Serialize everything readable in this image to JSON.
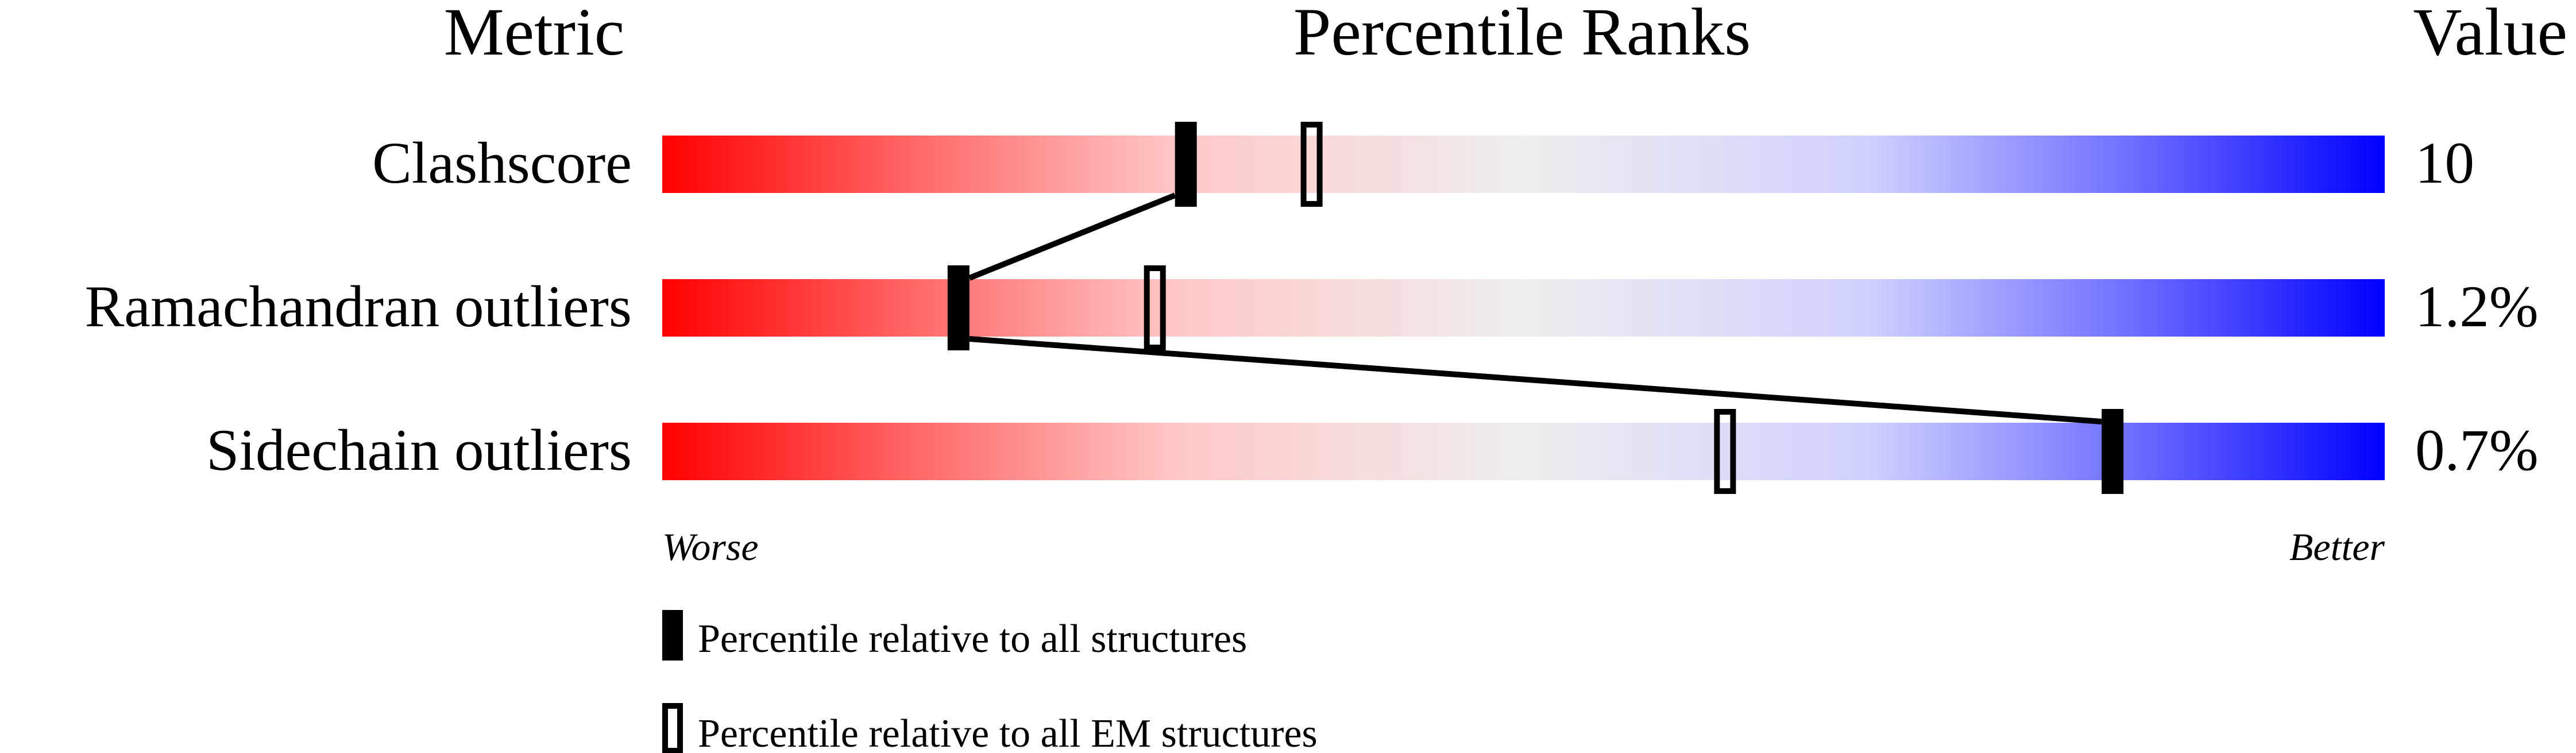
{
  "chart_data": {
    "type": "percentile-bars",
    "headers": {
      "metric": "Metric",
      "ranks": "Percentile Ranks",
      "value": "Value"
    },
    "xlim": [
      0,
      100
    ],
    "gradient_colors": {
      "worse": "#ff0000",
      "middle": "#eeeeee",
      "better": "#0000ff"
    },
    "axis_labels": {
      "left": "Worse",
      "right": "Better"
    },
    "rows": [
      {
        "metric": "Clashscore",
        "value": "10",
        "percentile_all": 30.4,
        "percentile_em": 37.7
      },
      {
        "metric": "Ramachandran outliers",
        "value": "1.2%",
        "percentile_all": 17.2,
        "percentile_em": 28.6
      },
      {
        "metric": "Sidechain outliers",
        "value": "0.7%",
        "percentile_all": 84.2,
        "percentile_em": 61.7
      }
    ],
    "legend": [
      {
        "marker": "filled",
        "label": "Percentile relative to all structures"
      },
      {
        "marker": "open",
        "label": "Percentile relative to all EM structures"
      }
    ]
  }
}
